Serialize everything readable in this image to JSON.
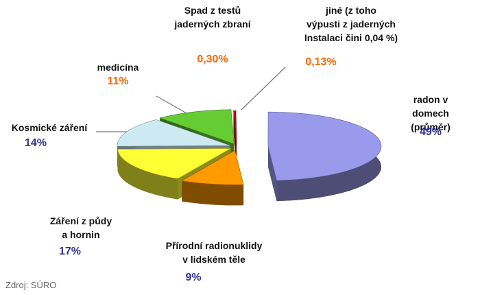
{
  "chart_data": {
    "type": "pie3d",
    "categories": [
      "radon v domech\n(průměr)",
      "Přírodní radionuklidy\nv lidském těle",
      "Záření z půdy\na hornin",
      "Kosmické záření",
      "medicína",
      "Spad z testů\njaderných zbraní",
      "jiné (z toho\nvýpusti z jaderných\nInstalaci čini 0,04 %)"
    ],
    "values": [
      49,
      9,
      17,
      14,
      11,
      0.3,
      0.13
    ],
    "value_labels": [
      "49%",
      "9%",
      "17%",
      "14%",
      "11%",
      "0,30%",
      "0,13%"
    ],
    "colors": [
      "#9a9aec",
      "#ff9a00",
      "#ffff33",
      "#cdeaf2",
      "#66cc33",
      "#cc1111",
      "#eeeeee"
    ],
    "value_label_colors": [
      "#333399",
      "#333399",
      "#333399",
      "#333399",
      "#ff6600",
      "#ff6600",
      "#ff6600"
    ],
    "source": "Zdroj: SÚRO"
  }
}
